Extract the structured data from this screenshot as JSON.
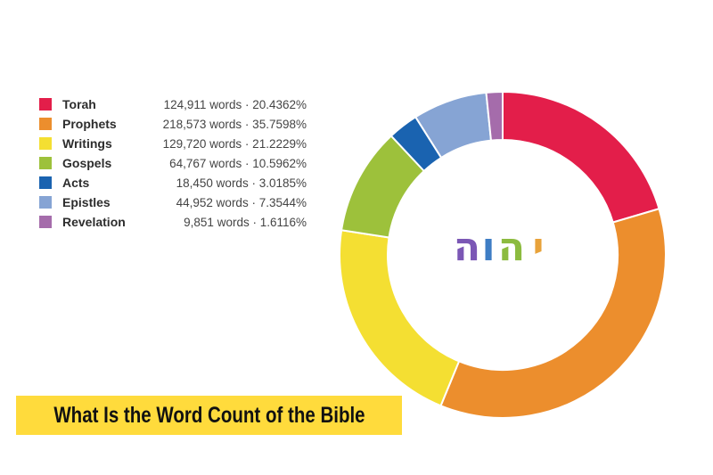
{
  "banner_title": "What Is the Word Count of the Bible",
  "center_label": {
    "glyphs": [
      "י",
      "ה",
      "ו",
      "ה"
    ],
    "colors": [
      "#e8a23a",
      "#8cbb3f",
      "#3e7dc4",
      "#7b57b5"
    ]
  },
  "chart_data": {
    "type": "pie",
    "donut": true,
    "legend_position": "left",
    "slices": [
      {
        "name": "Torah",
        "words": 124911,
        "percent": 20.4362,
        "label": "124,911 words · 20.4362%",
        "color": "#e31e4a"
      },
      {
        "name": "Prophets",
        "words": 218573,
        "percent": 35.7598,
        "label": "218,573 words · 35.7598%",
        "color": "#ec8e2d"
      },
      {
        "name": "Writings",
        "words": 129720,
        "percent": 21.2229,
        "label": "129,720 words · 21.2229%",
        "color": "#f4df32"
      },
      {
        "name": "Gospels",
        "words": 64767,
        "percent": 10.5962,
        "label": "64,767 words · 10.5962%",
        "color": "#9dc13b"
      },
      {
        "name": "Acts",
        "words": 18450,
        "percent": 3.0185,
        "label": "18,450 words · 3.0185%",
        "color": "#1a63b0"
      },
      {
        "name": "Epistles",
        "words": 44952,
        "percent": 7.3544,
        "label": "44,952 words · 7.3544%",
        "color": "#86a4d4"
      },
      {
        "name": "Revelation",
        "words": 9851,
        "percent": 1.6116,
        "label": "9,851 words · 1.6116%",
        "color": "#a56cab"
      }
    ]
  }
}
